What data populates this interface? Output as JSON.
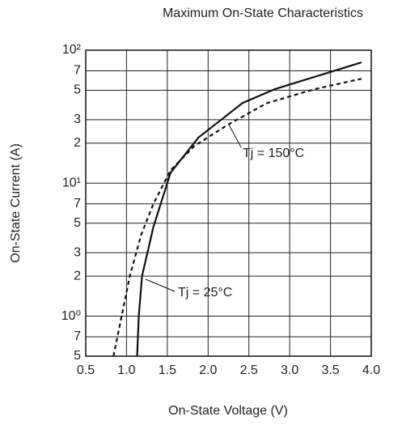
{
  "chart_data": {
    "type": "line",
    "title": "Maximum On-State Characteristics",
    "xlabel": "On-State Voltage  (V)",
    "ylabel": "On-State Current  (A)",
    "log_y": true,
    "grid": true,
    "xlim": [
      0.5,
      4.0
    ],
    "xticks": [
      0.5,
      {
        "value": 1,
        "label": "1.0"
      },
      1.5,
      {
        "value": 2,
        "label": "2.0"
      },
      2.5,
      {
        "value": 3,
        "label": "3.0"
      },
      3.5,
      {
        "value": 4,
        "label": "4.0"
      }
    ],
    "ylim": [
      0.5,
      100
    ],
    "yticks": [
      {
        "value": 100,
        "label": "10²"
      },
      {
        "value": 70,
        "label": "7"
      },
      {
        "value": 50,
        "label": "5"
      },
      {
        "value": 30,
        "label": "3"
      },
      {
        "value": 20,
        "label": "2"
      },
      {
        "value": 10,
        "label": "10¹"
      },
      7,
      5,
      3,
      2,
      {
        "value": 1,
        "label": "10⁰"
      },
      {
        "value": 0.7,
        "label": "7"
      },
      {
        "value": 0.5,
        "label": "5"
      }
    ],
    "series": [
      {
        "name": "Tj = 25°C",
        "color": "#111111",
        "dash": false,
        "x": [
          1.13,
          1.15,
          1.19,
          1.33,
          1.54,
          1.88,
          2.13,
          2.42,
          2.82,
          3.41,
          3.88
        ],
        "values": [
          0.5,
          1,
          2,
          4.7,
          12,
          22,
          29,
          40,
          51,
          66,
          81
        ]
      },
      {
        "name": "Tj = 150°C",
        "color": "#111111",
        "dash": true,
        "x": [
          0.84,
          0.94,
          1.04,
          1.18,
          1.33,
          1.54,
          1.83,
          2.22,
          2.72,
          3.31,
          3.88
        ],
        "values": [
          0.5,
          1,
          2,
          4.1,
          7,
          12.5,
          19,
          27,
          40,
          51,
          61
        ]
      }
    ]
  }
}
